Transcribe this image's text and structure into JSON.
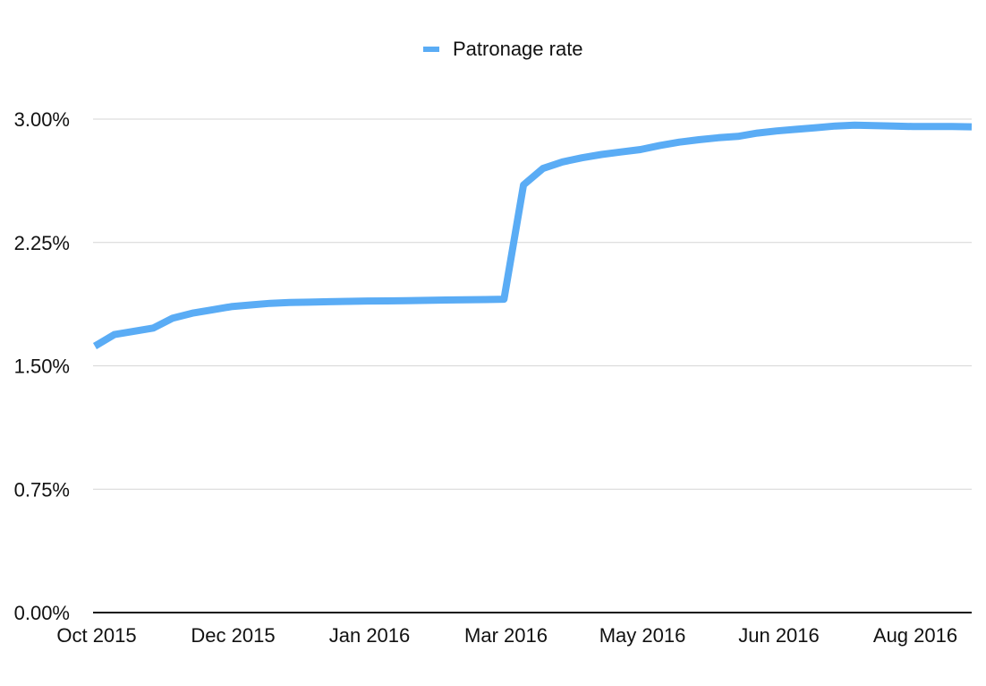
{
  "chart_data": {
    "type": "line",
    "title": "",
    "xlabel": "",
    "ylabel": "",
    "legend_position": "top-center",
    "grid": true,
    "ylim": [
      0,
      3.0
    ],
    "y_ticks": [
      {
        "value": 0,
        "label": "0.00%"
      },
      {
        "value": 0.75,
        "label": "0.75%"
      },
      {
        "value": 1.5,
        "label": "1.50%"
      },
      {
        "value": 2.25,
        "label": "2.25%"
      },
      {
        "value": 3.0,
        "label": "3.00%"
      }
    ],
    "x_ticks": [
      "Oct 2015",
      "Dec 2015",
      "Jan 2016",
      "Mar 2016",
      "May 2016",
      "Jun 2016",
      "Aug 2016"
    ],
    "series": [
      {
        "name": "Patronage rate",
        "color": "#5aacf5",
        "values": [
          1.62,
          1.69,
          1.71,
          1.73,
          1.79,
          1.82,
          1.84,
          1.86,
          1.87,
          1.88,
          1.885,
          1.887,
          1.89,
          1.892,
          1.894,
          1.895,
          1.896,
          1.898,
          1.9,
          1.902,
          1.903,
          1.905,
          2.6,
          2.7,
          2.74,
          2.765,
          2.785,
          2.8,
          2.815,
          2.84,
          2.86,
          2.875,
          2.887,
          2.895,
          2.915,
          2.928,
          2.938,
          2.948,
          2.958,
          2.963,
          2.961,
          2.958,
          2.955,
          2.955,
          2.955,
          2.953
        ]
      }
    ]
  }
}
